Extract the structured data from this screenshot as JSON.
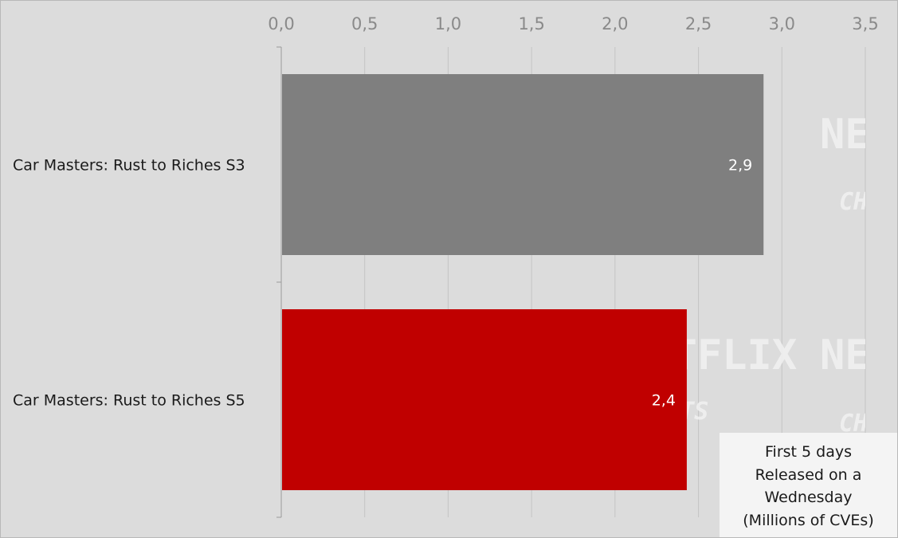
{
  "colors": {
    "background": "#dcdcdc",
    "gridline": "#c4c4c4",
    "axis": "#9a9a9a",
    "bar_previous": "#7f7f7f",
    "bar_current": "#c00000",
    "watermark": "#f2f2f2"
  },
  "watermark_words": {
    "logo": "NETFLIX",
    "subtitle": "CHARTS"
  },
  "note": {
    "line1": "First 5 days",
    "line2": "Released on a",
    "line3": "Wednesday",
    "line4": "(Millions of CVEs)"
  },
  "chart_data": {
    "type": "bar",
    "orientation": "horizontal",
    "categories": [
      "Car Masters: Rust to Riches S3",
      "Car Masters: Rust to Riches S5"
    ],
    "values": [
      2.89,
      2.43
    ],
    "data_labels": [
      "2,9",
      "2,4"
    ],
    "bar_colors": [
      "#7f7f7f",
      "#c00000"
    ],
    "xlim": [
      0,
      3.5
    ],
    "x_ticks": [
      0,
      0.5,
      1.0,
      1.5,
      2.0,
      2.5,
      3.0,
      3.5
    ],
    "x_tick_labels": [
      "0,0",
      "0,5",
      "1,0",
      "1,5",
      "2,0",
      "2,5",
      "3,0",
      "3,5"
    ],
    "x_axis_position": "top",
    "grid": true,
    "title": "",
    "xlabel": "",
    "ylabel": ""
  }
}
